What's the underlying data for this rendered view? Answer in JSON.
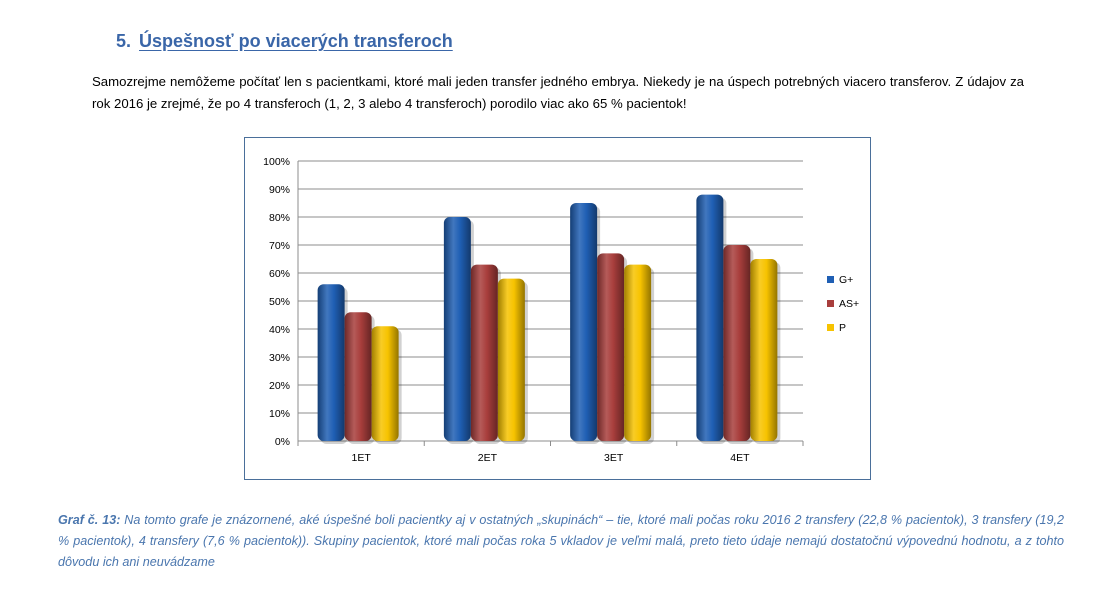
{
  "section": {
    "number": "5.",
    "title": "Úspešnosť po viacerých transferoch"
  },
  "paragraph": "Samozrejme nemôžeme počítať len s pacientkami, ktoré mali jeden transfer jedného embrya.  Niekedy je na úspech potrebných viacero transferov. Z údajov za rok 2016 je zrejmé, že po 4 transferoch (1, 2, 3 alebo 4 transferoch) porodilo viac ako 65 % pacientok!",
  "chart_data": {
    "type": "bar",
    "categories": [
      "1ET",
      "2ET",
      "3ET",
      "4ET"
    ],
    "series": [
      {
        "name": "G+",
        "color": "#1f5fb4",
        "values": [
          56,
          80,
          85,
          88
        ]
      },
      {
        "name": "AS+",
        "color": "#a83e3c",
        "values": [
          46,
          63,
          67,
          70
        ]
      },
      {
        "name": "P",
        "color": "#f7c300",
        "values": [
          41,
          58,
          63,
          65
        ]
      }
    ],
    "ylim": [
      0,
      100
    ],
    "yticks": [
      "0%",
      "10%",
      "20%",
      "30%",
      "40%",
      "50%",
      "60%",
      "70%",
      "80%",
      "90%",
      "100%"
    ],
    "grid": true,
    "legend": "right"
  },
  "caption": {
    "lead": "Graf č. 13:",
    "text": " Na tomto grafe je znázornené, aké úspešné boli pacientky aj v ostatných „skupinách“ – tie, ktoré mali počas roku 2016 2 transfery (22,8 % pacientok), 3 transfery (19,2 % pacientok), 4 transfery (7,6 % pacientok)). Skupiny pacientok, ktoré mali počas roka 5 vkladov je veľmi malá,  preto tieto údaje nemajú dostatočnú výpovednú hodnotu, a z tohto dôvodu ich ani neuvádzame"
  }
}
